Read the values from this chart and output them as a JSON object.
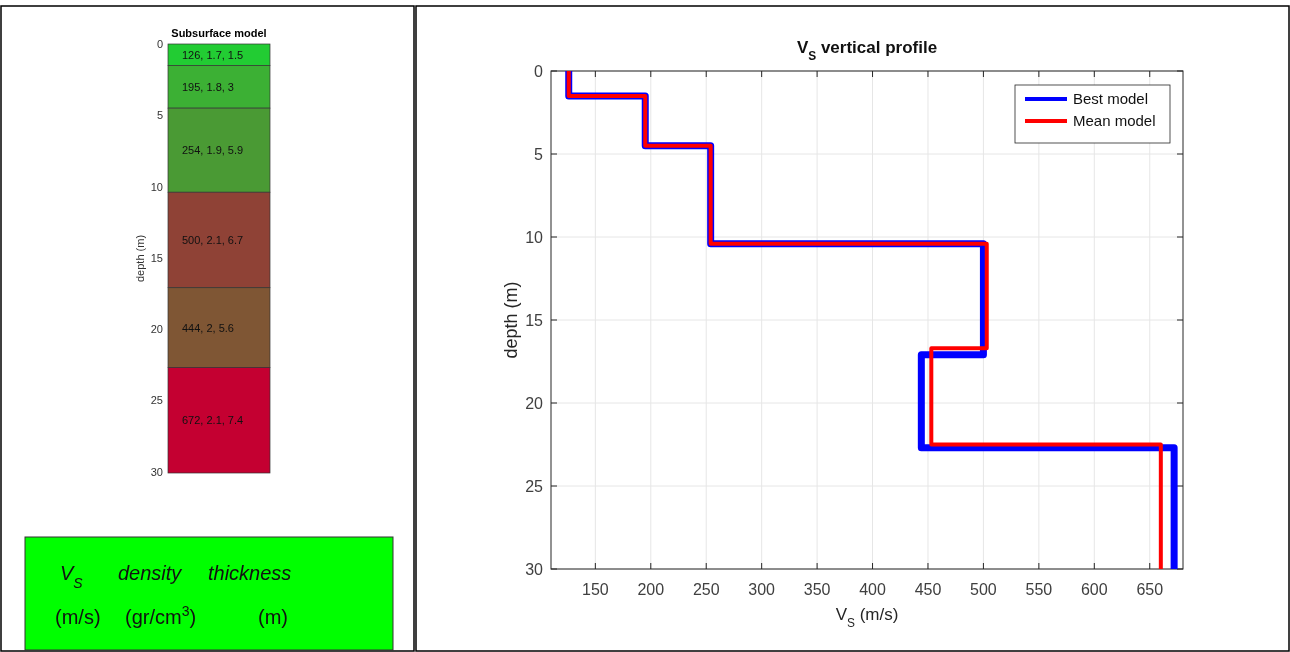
{
  "chart_data": [
    {
      "type": "bar",
      "title": "Subsurface model",
      "ylabel": "depth (m)",
      "categories": [
        null
      ],
      "stacked": true,
      "ylim": [
        30.1,
        0
      ],
      "yticks": [
        0,
        5,
        10,
        15,
        20,
        25,
        30
      ],
      "tick_labels": "y",
      "grid": false,
      "series": [
        {
          "color": "#22cc33",
          "values": [
            1.5
          ],
          "value_labels": [
            "126, 1.7, 1.5"
          ]
        },
        {
          "color": "#3cb034",
          "values": [
            3
          ],
          "value_labels": [
            "195, 1.8, 3"
          ]
        },
        {
          "color": "#4a9a34",
          "values": [
            5.9
          ],
          "value_labels": [
            "254, 1.9, 5.9"
          ]
        },
        {
          "color": "#8f4236",
          "values": [
            6.7
          ],
          "value_labels": [
            "500, 2.1, 6.7"
          ]
        },
        {
          "color": "#7f5634",
          "values": [
            5.6
          ],
          "value_labels": [
            "444, 2, 5.6"
          ]
        },
        {
          "color": "#c40031",
          "values": [
            7.4
          ],
          "value_labels": [
            "672, 2.1, 7.4"
          ]
        }
      ],
      "annotations": [
        "V$_{S}$",
        "density",
        "thickness",
        "(m/s)",
        "(gr/cm$^{3}$)",
        "(m)"
      ]
    },
    {
      "type": "line",
      "title": "V$_{S}$ vertical profile",
      "xlabel": "V$_{S}$ (m/s)",
      "ylabel": "depth (m)",
      "xlim": [
        110,
        680
      ],
      "xticks": [
        150,
        200,
        250,
        300,
        350,
        400,
        450,
        500,
        550,
        600,
        650
      ],
      "ylim": [
        30,
        0
      ],
      "yticks": [
        0,
        5,
        10,
        15,
        20,
        25,
        30
      ],
      "grid": true,
      "legend": "top right",
      "marker": "none",
      "line_style": "solid",
      "series": [
        {
          "name": "Best model",
          "color": "#0000ff",
          "x": [
            126,
            126,
            195,
            195,
            254,
            254,
            500,
            500,
            444,
            444,
            672,
            672
          ],
          "values": [
            0,
            1.5,
            1.5,
            4.5,
            4.5,
            10.4,
            10.4,
            17.1,
            17.1,
            22.7,
            22.7,
            30
          ]
        },
        {
          "name": "Mean model",
          "color": "#ff0000",
          "x": [
            126,
            126,
            195,
            195,
            254,
            254,
            503,
            503,
            453,
            453,
            660,
            660
          ],
          "values": [
            0,
            1.5,
            1.5,
            4.5,
            4.5,
            10.4,
            10.4,
            16.7,
            16.7,
            22.5,
            22.5,
            30
          ]
        }
      ]
    }
  ]
}
